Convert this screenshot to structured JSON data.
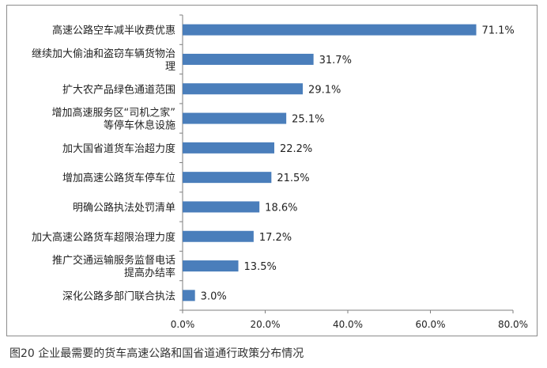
{
  "caption": "图20 企业最需要的货车高速公路和国省道通行政策分布情况",
  "chart_data": {
    "type": "bar",
    "orientation": "horizontal",
    "categories": [
      "高速公路空车减半收费优惠",
      "继续加大偷油和盗窃车辆货物治理",
      "扩大农产品绿色通道范围",
      "增加高速服务区“司机之家”等停车休息设施",
      "加大国省道货车治超力度",
      "增加高速公路货车停车位",
      "明确公路执法处罚清单",
      "加大高速公路货车超限治理力度",
      "推广交通运输服务监督电话提高办结率",
      "深化公路多部门联合执法"
    ],
    "category_lines": [
      [
        "高速公路空车减半收费优惠"
      ],
      [
        "继续加大偷油和盗窃车辆货物治",
        "理"
      ],
      [
        "扩大农产品绿色通道范围"
      ],
      [
        "增加高速服务区“司机之家”",
        "等停车休息设施"
      ],
      [
        "加大国省道货车治超力度"
      ],
      [
        "增加高速公路货车停车位"
      ],
      [
        "明确公路执法处罚清单"
      ],
      [
        "加大高速公路货车超限治理力度"
      ],
      [
        "推广交通运输服务监督电话",
        "提高办结率"
      ],
      [
        "深化公路多部门联合执法"
      ]
    ],
    "values": [
      71.1,
      31.7,
      29.1,
      25.1,
      22.2,
      21.5,
      18.6,
      17.2,
      13.5,
      3.0
    ],
    "value_labels": [
      "71.1%",
      "31.7%",
      "29.1%",
      "25.1%",
      "22.2%",
      "21.5%",
      "18.6%",
      "17.2%",
      "13.5%",
      "3.0%"
    ],
    "xlim": [
      0,
      80
    ],
    "xticks": [
      0,
      20,
      40,
      60,
      80
    ],
    "xtick_labels": [
      "0.0%",
      "20.0%",
      "40.0%",
      "60.0%",
      "80.0%"
    ],
    "title": "",
    "xlabel": "",
    "ylabel": "",
    "grid": false,
    "bar_color": "#4a7ebb"
  }
}
